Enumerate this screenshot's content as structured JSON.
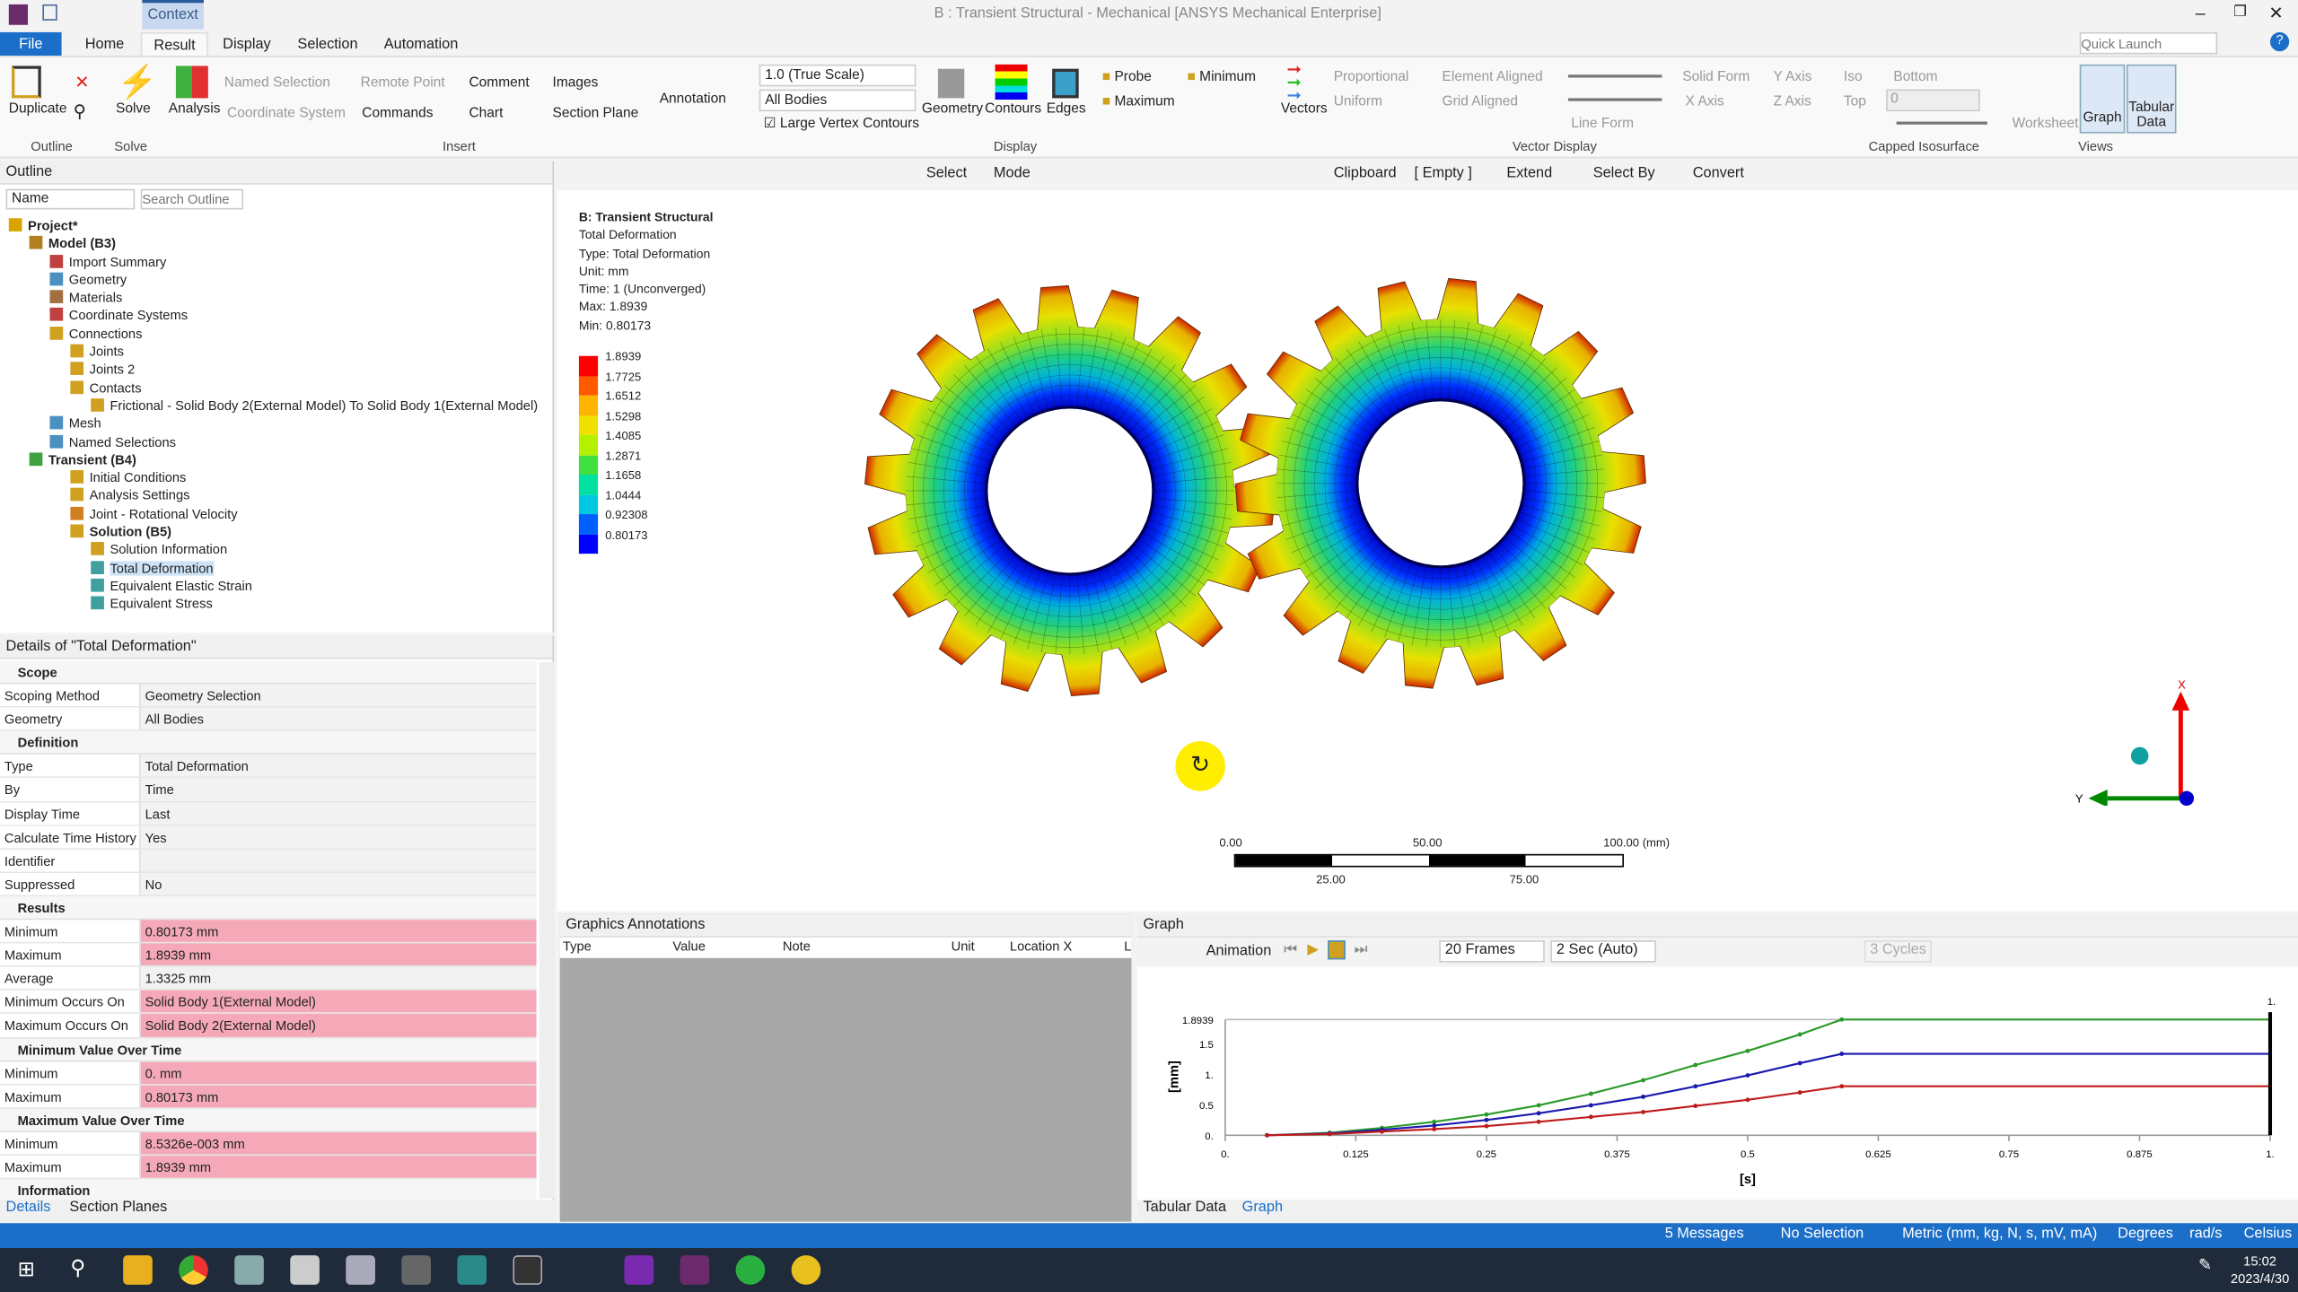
{
  "window": {
    "title": "B : Transient Structural - Mechanical [ANSYS Mechanical Enterprise]",
    "context_tab": "Context",
    "quick_launch_placeholder": "Quick Launch"
  },
  "tabs": [
    "File",
    "Home",
    "Result",
    "Display",
    "Selection",
    "Automation"
  ],
  "ribbon": {
    "outline": {
      "duplicate": "Duplicate",
      "group": "Outline"
    },
    "solve": {
      "solve": "Solve",
      "group": "Solve"
    },
    "insert": {
      "analysis": "Analysis",
      "named_selection": "Named Selection",
      "remote_point": "Remote Point",
      "comment": "Comment",
      "images": "Images",
      "coordinate_system": "Coordinate System",
      "commands": "Commands",
      "chart": "Chart",
      "section_plane": "Section Plane",
      "annotation": "Annotation",
      "group": "Insert"
    },
    "display": {
      "scale": "1.0 (True Scale)",
      "bodies": "All Bodies",
      "large_vertex": "Large Vertex Contours",
      "geometry": "Geometry",
      "contours": "Contours",
      "edges": "Edges",
      "probe": "Probe",
      "maximum": "Maximum",
      "minimum": "Minimum",
      "group": "Display"
    },
    "vector": {
      "vectors": "Vectors",
      "proportional": "Proportional",
      "uniform": "Uniform",
      "element_aligned": "Element Aligned",
      "grid_aligned": "Grid Aligned",
      "solid_form": "Solid Form",
      "line_form": "Line Form",
      "y_axis": "Y Axis",
      "x_axis": "X Axis",
      "z_axis": "Z Axis",
      "group": "Vector Display"
    },
    "capped": {
      "iso": "Iso",
      "bottom": "Bottom",
      "top": "Top",
      "top_value": "0",
      "group": "Capped Isosurface"
    },
    "views": {
      "worksheet": "Worksheet",
      "graph": "Graph",
      "tabular": "Tabular Data",
      "group": "Views"
    }
  },
  "outline": {
    "title": "Outline",
    "name_filter": "Name",
    "search_placeholder": "Search Outline",
    "tree": [
      {
        "label": "Project*",
        "level": 0,
        "bold": true,
        "icon": "#d9a400"
      },
      {
        "label": "Model (B3)",
        "level": 1,
        "bold": true,
        "icon": "#b08020"
      },
      {
        "label": "Import Summary",
        "level": 2,
        "icon": "#c04040"
      },
      {
        "label": "Geometry",
        "level": 2,
        "icon": "#4a90c0"
      },
      {
        "label": "Materials",
        "level": 2,
        "icon": "#a07040"
      },
      {
        "label": "Coordinate Systems",
        "level": 2,
        "icon": "#c04040"
      },
      {
        "label": "Connections",
        "level": 2,
        "icon": "#d0a020"
      },
      {
        "label": "Joints",
        "level": 3,
        "icon": "#d0a020"
      },
      {
        "label": "Joints 2",
        "level": 3,
        "icon": "#d0a020"
      },
      {
        "label": "Contacts",
        "level": 3,
        "icon": "#d0a020"
      },
      {
        "label": "Frictional - Solid Body 2(External Model) To Solid Body 1(External Model)",
        "level": 4,
        "icon": "#d0a020"
      },
      {
        "label": "Mesh",
        "level": 2,
        "icon": "#4a90c0"
      },
      {
        "label": "Named Selections",
        "level": 2,
        "icon": "#4a90c0"
      },
      {
        "label": "Transient (B4)",
        "level": 1,
        "bold": true,
        "icon": "#40a040"
      },
      {
        "label": "Initial Conditions",
        "level": 3,
        "icon": "#d0a020"
      },
      {
        "label": "Analysis Settings",
        "level": 3,
        "icon": "#d0a020"
      },
      {
        "label": "Joint - Rotational Velocity",
        "level": 3,
        "icon": "#d08020"
      },
      {
        "label": "Solution (B5)",
        "level": 3,
        "bold": true,
        "icon": "#d0a020"
      },
      {
        "label": "Solution Information",
        "level": 4,
        "icon": "#d0a020"
      },
      {
        "label": "Total Deformation",
        "level": 4,
        "icon": "#40a0a0",
        "selected": true
      },
      {
        "label": "Equivalent Elastic Strain",
        "level": 4,
        "icon": "#40a0a0"
      },
      {
        "label": "Equivalent Stress",
        "level": 4,
        "icon": "#40a0a0"
      }
    ]
  },
  "details": {
    "title": "Details of \"Total Deformation\"",
    "sections": [
      {
        "name": "Scope",
        "rows": [
          [
            "Scoping Method",
            "Geometry Selection"
          ],
          [
            "Geometry",
            "All Bodies"
          ]
        ]
      },
      {
        "name": "Definition",
        "rows": [
          [
            "Type",
            "Total Deformation"
          ],
          [
            "By",
            "Time"
          ],
          [
            "Display Time",
            "Last"
          ],
          [
            "Calculate Time History",
            "Yes"
          ],
          [
            "Identifier",
            ""
          ],
          [
            "Suppressed",
            "No"
          ]
        ]
      },
      {
        "name": "Results",
        "rows": [
          [
            "Minimum",
            "0.80173 mm",
            1
          ],
          [
            "Maximum",
            "1.8939 mm",
            1
          ],
          [
            "Average",
            "1.3325 mm"
          ],
          [
            "Minimum Occurs On",
            "Solid Body 1(External Model)",
            1
          ],
          [
            "Maximum Occurs On",
            "Solid Body 2(External Model)",
            1
          ]
        ]
      },
      {
        "name": "Minimum Value Over Time",
        "rows": [
          [
            "Minimum",
            "0. mm",
            1
          ],
          [
            "Maximum",
            "0.80173 mm",
            1
          ]
        ]
      },
      {
        "name": "Maximum Value Over Time",
        "rows": [
          [
            "Minimum",
            "8.5326e-003 mm",
            1
          ],
          [
            "Maximum",
            "1.8939 mm",
            1
          ]
        ]
      },
      {
        "name": "Information",
        "rows": []
      }
    ],
    "bottom_tabs": [
      "Details",
      "Section Planes"
    ]
  },
  "graphics_toolbar": {
    "select": "Select",
    "mode": "Mode",
    "clipboard": "Clipboard",
    "empty": "[ Empty ]",
    "extend": "Extend",
    "select_by": "Select By",
    "convert": "Convert"
  },
  "viewport": {
    "info": [
      "B: Transient Structural",
      "Total Deformation",
      "Type: Total Deformation",
      "Unit: mm",
      "Time: 1 (Unconverged)",
      "Max: 1.8939",
      "Min: 0.80173"
    ],
    "legend": {
      "labels": [
        "1.8939",
        "1.7725",
        "1.6512",
        "1.5298",
        "1.4085",
        "1.2871",
        "1.1658",
        "1.0444",
        "0.92308",
        "0.80173"
      ],
      "colors": [
        "#ff0000",
        "#ff5a00",
        "#ffb400",
        "#f0e000",
        "#b4f000",
        "#40e040",
        "#00e0a0",
        "#00c8e0",
        "#0060ff",
        "#0000ff"
      ]
    },
    "scale_bar": {
      "top": [
        "0.00",
        "50.00",
        "100.00 (mm)"
      ],
      "bottom": [
        "25.00",
        "75.00"
      ]
    },
    "triad": {
      "x": "X",
      "y": "Y"
    }
  },
  "annotations": {
    "title": "Graphics Annotations",
    "columns": [
      "Type",
      "Value",
      "Note",
      "Unit",
      "Location X",
      "L"
    ]
  },
  "graph": {
    "title": "Graph",
    "animation": "Animation",
    "frames": "20 Frames",
    "duration": "2 Sec (Auto)",
    "cycles": "3 Cycles",
    "marker_label": "1.",
    "slider_label": "1",
    "bottom_tabs": [
      "Tabular Data",
      "Graph"
    ]
  },
  "chart_data": {
    "type": "line",
    "xlabel": "[s]",
    "ylabel": "[mm]",
    "xlim": [
      0,
      1
    ],
    "ylim": [
      0,
      1.8939
    ],
    "xticks": [
      "0.",
      "0.125",
      "0.25",
      "0.375",
      "0.5",
      "0.625",
      "0.75",
      "0.875",
      "1."
    ],
    "yticks": [
      "0.",
      "0.5",
      "1.",
      "1.5",
      "1.8939"
    ],
    "x": [
      0.04,
      0.1,
      0.15,
      0.2,
      0.25,
      0.3,
      0.35,
      0.4,
      0.45,
      0.5,
      0.55,
      0.59,
      0.8,
      1.0
    ],
    "series": [
      {
        "color": "#2a9a2a",
        "values": [
          0,
          0.04,
          0.12,
          0.22,
          0.34,
          0.49,
          0.68,
          0.9,
          1.15,
          1.38,
          1.65,
          1.8939,
          1.8939,
          1.8939
        ]
      },
      {
        "color": "#1a1ab0",
        "values": [
          0,
          0.03,
          0.09,
          0.16,
          0.25,
          0.36,
          0.49,
          0.63,
          0.8,
          0.98,
          1.18,
          1.3325,
          1.3325,
          1.3325
        ]
      },
      {
        "color": "#c01a1a",
        "values": [
          0,
          0.02,
          0.06,
          0.1,
          0.15,
          0.22,
          0.3,
          0.38,
          0.48,
          0.58,
          0.7,
          0.80173,
          0.80173,
          0.80173
        ]
      }
    ]
  },
  "status": {
    "messages": "5 Messages",
    "selection": "No Selection",
    "units": "Metric (mm, kg, N, s, mV, mA)",
    "angle": "Degrees",
    "rate": "rad/s",
    "temp": "Celsius"
  },
  "taskbar": {
    "time": "15:02",
    "date": "2023/4/30"
  }
}
